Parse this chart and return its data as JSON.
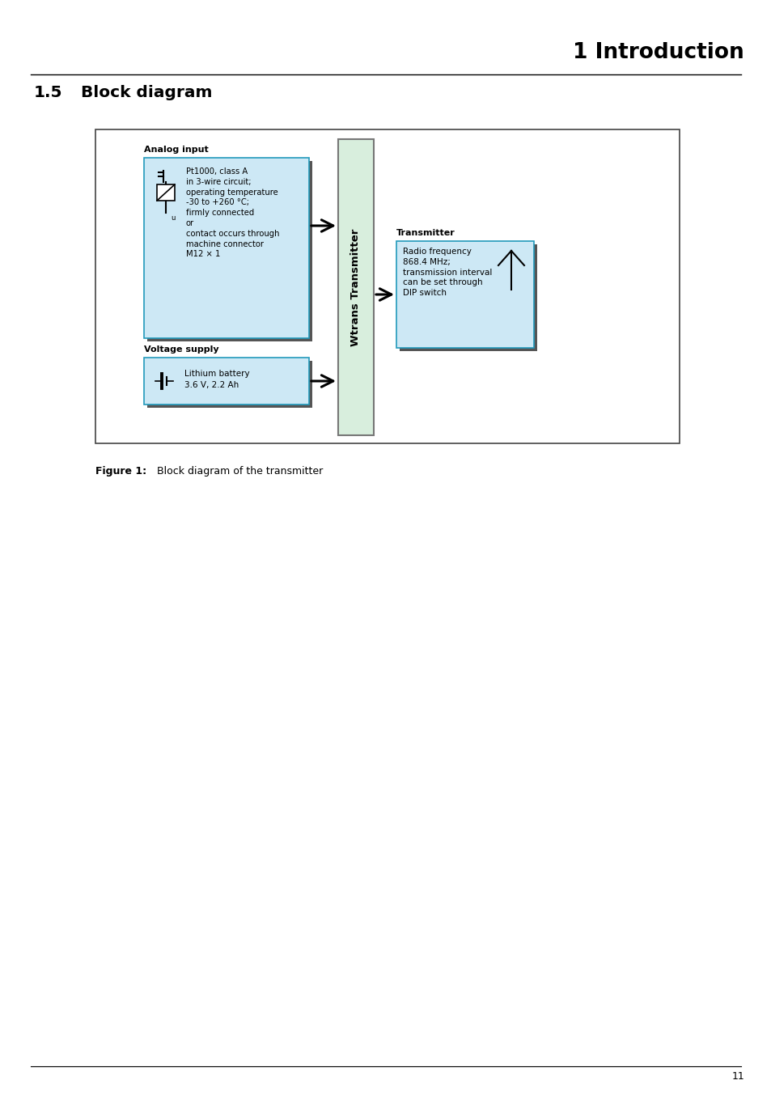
{
  "page_title": "1 Introduction",
  "section_title": "1.5",
  "section_subtitle": "Block diagram",
  "figure_caption_bold": "Figure 1:",
  "figure_caption_rest": "    Block diagram of the transmitter",
  "page_number": "11",
  "bg_color": "#ffffff",
  "box_light_blue": "#cde8f5",
  "box_light_green": "#d8eedd",
  "shadow_color": "#555555",
  "analog_input_label": "Analog input",
  "analog_input_text": "Pt1000, class A\nin 3-wire circuit;\noperating temperature\n-30 to +260 °C;\nfirmly connected\nor\ncontact occurs through\nmachine connector\nM12 × 1",
  "voltage_supply_label": "Voltage supply",
  "voltage_supply_text": "Lithium battery\n3.6 V, 2.2 Ah",
  "transmitter_center_label": "Wtrans Transmitter",
  "transmitter_label": "Transmitter",
  "transmitter_text": "Radio frequency\n868.4 MHz;\ntransmission interval\ncan be set through\nDIP switch"
}
